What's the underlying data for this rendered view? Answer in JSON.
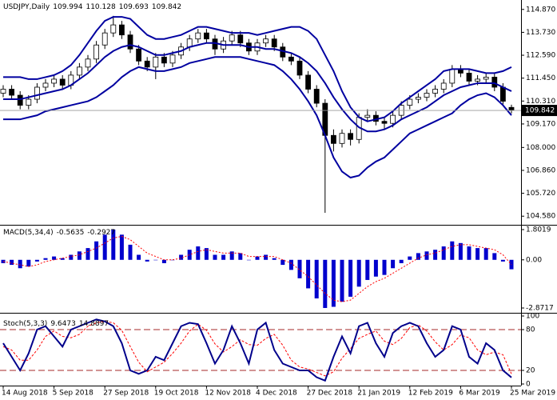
{
  "chart_data": [
    {
      "type": "candlestick",
      "title": "USDJPY,Daily",
      "open": [
        110.7,
        110.9,
        110.6,
        110.1,
        110.4,
        111.0,
        111.2,
        111.4,
        111.1,
        111.6,
        112.0,
        112.4,
        113.1,
        113.7,
        114.1,
        113.6,
        112.9,
        112.3,
        112.0,
        112.5,
        112.2,
        112.6,
        113.0,
        113.4,
        113.7,
        113.4,
        112.9,
        113.3,
        113.6,
        113.2,
        112.8,
        113.2,
        113.4,
        113.0,
        112.5,
        112.3,
        111.6,
        110.9,
        110.2,
        108.6,
        108.2,
        108.7,
        108.4,
        109.5,
        109.6,
        109.3,
        109.2,
        109.6,
        110.1,
        110.4,
        110.5,
        110.7,
        110.9,
        111.2,
        111.9,
        111.7,
        111.3,
        111.4,
        111.5,
        111.0,
        109.994
      ],
      "high": [
        111.1,
        111.1,
        110.8,
        110.6,
        111.2,
        111.4,
        111.6,
        111.6,
        111.8,
        112.2,
        112.6,
        113.3,
        113.9,
        114.55,
        114.3,
        113.8,
        113.1,
        112.5,
        112.7,
        112.7,
        112.8,
        113.2,
        113.6,
        113.9,
        113.9,
        113.6,
        113.5,
        113.8,
        113.8,
        113.4,
        113.4,
        113.6,
        113.6,
        113.2,
        112.7,
        112.5,
        111.8,
        111.1,
        110.4,
        108.9,
        108.9,
        108.9,
        109.7,
        109.9,
        109.8,
        109.5,
        109.8,
        110.3,
        110.6,
        110.7,
        110.9,
        111.1,
        111.4,
        112.1,
        112.1,
        111.9,
        111.6,
        111.7,
        111.7,
        111.2,
        110.128
      ],
      "low": [
        110.5,
        110.4,
        109.9,
        109.9,
        110.2,
        110.8,
        111.0,
        110.9,
        110.9,
        111.4,
        111.8,
        112.2,
        112.9,
        113.5,
        113.4,
        112.7,
        112.1,
        111.8,
        111.4,
        112.0,
        112.0,
        112.4,
        112.8,
        113.2,
        113.2,
        112.6,
        112.7,
        113.1,
        113.0,
        112.6,
        112.6,
        113.0,
        112.8,
        112.3,
        112.1,
        111.4,
        110.7,
        110.0,
        104.75,
        107.8,
        108.0,
        108.1,
        108.2,
        109.3,
        109.1,
        108.9,
        109.0,
        109.4,
        109.9,
        110.2,
        110.3,
        110.5,
        110.7,
        111.0,
        111.5,
        111.1,
        111.1,
        111.2,
        110.8,
        110.1,
        109.693
      ],
      "close": [
        110.9,
        110.6,
        110.1,
        110.4,
        111.0,
        111.2,
        111.4,
        111.1,
        111.6,
        112.0,
        112.4,
        113.1,
        113.7,
        114.1,
        113.6,
        112.9,
        112.3,
        112.0,
        112.5,
        112.2,
        112.6,
        113.0,
        113.4,
        113.7,
        113.4,
        112.9,
        113.3,
        113.6,
        113.2,
        112.8,
        113.2,
        113.4,
        113.0,
        112.5,
        112.3,
        111.6,
        110.9,
        110.2,
        108.6,
        108.2,
        108.7,
        108.4,
        109.5,
        109.6,
        109.3,
        109.2,
        109.6,
        110.1,
        110.4,
        110.5,
        110.7,
        110.9,
        111.2,
        111.9,
        111.7,
        111.3,
        111.4,
        111.5,
        111.0,
        110.3,
        109.842
      ],
      "up_color": "#ffffff",
      "down_color": "#000000",
      "wick_color": "#000000",
      "bands": {
        "color": "#0000a0",
        "upper": [
          111.5,
          111.5,
          111.5,
          111.4,
          111.4,
          111.5,
          111.6,
          111.8,
          112.1,
          112.6,
          113.2,
          113.8,
          114.3,
          114.5,
          114.5,
          114.4,
          114.0,
          113.6,
          113.4,
          113.4,
          113.5,
          113.6,
          113.8,
          114.0,
          114.0,
          113.9,
          113.8,
          113.7,
          113.7,
          113.7,
          113.6,
          113.7,
          113.8,
          113.9,
          114.0,
          114.0,
          113.8,
          113.4,
          112.6,
          111.8,
          110.8,
          110.0,
          109.5,
          109.3,
          109.4,
          109.5,
          109.8,
          110.2,
          110.5,
          110.8,
          111.1,
          111.4,
          111.8,
          111.9,
          111.9,
          111.9,
          111.8,
          111.7,
          111.7,
          111.8,
          112.0
        ],
        "middle": [
          110.4,
          110.4,
          110.4,
          110.5,
          110.6,
          110.7,
          110.8,
          110.9,
          111.1,
          111.4,
          111.7,
          112.1,
          112.5,
          112.8,
          113.0,
          113.1,
          113.0,
          112.8,
          112.6,
          112.6,
          112.7,
          112.8,
          113.0,
          113.1,
          113.2,
          113.2,
          113.1,
          113.1,
          113.1,
          113.0,
          113.0,
          112.9,
          112.9,
          112.8,
          112.7,
          112.5,
          112.2,
          111.8,
          111.2,
          110.5,
          109.9,
          109.4,
          109.0,
          108.8,
          108.8,
          108.9,
          109.1,
          109.4,
          109.6,
          109.8,
          110.0,
          110.3,
          110.6,
          110.8,
          111.0,
          111.1,
          111.2,
          111.2,
          111.2,
          111.0,
          110.8
        ],
        "lower": [
          109.4,
          109.4,
          109.4,
          109.5,
          109.6,
          109.8,
          109.9,
          110.0,
          110.1,
          110.2,
          110.3,
          110.5,
          110.8,
          111.1,
          111.5,
          111.8,
          112.0,
          111.9,
          111.8,
          111.8,
          111.9,
          112.0,
          112.2,
          112.3,
          112.4,
          112.5,
          112.5,
          112.5,
          112.5,
          112.4,
          112.3,
          112.2,
          112.1,
          111.8,
          111.4,
          110.9,
          110.3,
          109.6,
          108.6,
          107.5,
          106.8,
          106.5,
          106.6,
          107.0,
          107.3,
          107.5,
          107.9,
          108.3,
          108.7,
          108.9,
          109.1,
          109.3,
          109.5,
          109.7,
          110.1,
          110.4,
          110.6,
          110.7,
          110.5,
          110.1,
          109.6
        ]
      },
      "ylim": [
        104.39,
        115.1
      ],
      "yticks": [
        {
          "value": 114.87,
          "label": "114.870"
        },
        {
          "value": 113.73,
          "label": "113.730"
        },
        {
          "value": 112.59,
          "label": "112.590"
        },
        {
          "value": 111.45,
          "label": "111.450"
        },
        {
          "value": 110.31,
          "label": "110.310"
        },
        {
          "value": 109.17,
          "label": "109.170"
        },
        {
          "value": 108,
          "label": "108.000"
        },
        {
          "value": 106.86,
          "label": "106.860"
        },
        {
          "value": 105.72,
          "label": "105.720"
        },
        {
          "value": 104.58,
          "label": "104.580"
        }
      ]
    },
    {
      "type": "macd",
      "title": "MACD(5,34,4)",
      "color": "#0000cd",
      "signal_color": "#ff0000",
      "histogram": [
        -0.2,
        -0.3,
        -0.5,
        -0.4,
        -0.1,
        0.1,
        0.2,
        0.1,
        0.3,
        0.5,
        0.7,
        1.1,
        1.5,
        1.8,
        1.5,
        0.9,
        0.3,
        -0.1,
        0.0,
        -0.2,
        0.0,
        0.3,
        0.6,
        0.8,
        0.7,
        0.3,
        0.3,
        0.5,
        0.4,
        0.0,
        0.2,
        0.3,
        0.1,
        -0.3,
        -0.6,
        -1.1,
        -1.7,
        -2.3,
        -2.87,
        -2.8,
        -2.5,
        -2.2,
        -1.6,
        -1.2,
        -1.0,
        -0.9,
        -0.5,
        -0.2,
        0.2,
        0.4,
        0.5,
        0.6,
        0.8,
        1.1,
        1.0,
        0.8,
        0.7,
        0.7,
        0.4,
        -0.1,
        -0.5635
      ],
      "signal": [
        -0.1,
        -0.2,
        -0.3,
        -0.4,
        -0.3,
        -0.1,
        0.0,
        0.1,
        0.2,
        0.3,
        0.5,
        0.7,
        1.0,
        1.3,
        1.4,
        1.2,
        0.8,
        0.4,
        0.2,
        0.0,
        0.0,
        0.1,
        0.3,
        0.5,
        0.6,
        0.5,
        0.4,
        0.4,
        0.4,
        0.2,
        0.2,
        0.2,
        0.2,
        0.0,
        -0.2,
        -0.6,
        -1.0,
        -1.5,
        -2.0,
        -2.4,
        -2.5,
        -2.4,
        -2.0,
        -1.6,
        -1.3,
        -1.1,
        -0.8,
        -0.5,
        -0.2,
        0.1,
        0.3,
        0.4,
        0.6,
        0.8,
        0.9,
        0.9,
        0.8,
        0.7,
        0.6,
        0.3,
        -0.2927
      ],
      "ylim": [
        -2.8717,
        1.8019
      ],
      "yticks": [
        1.8019,
        {
          "value": 0,
          "label": "0.00"
        },
        -2.8717
      ]
    },
    {
      "type": "stochastic",
      "title": "Stoch(5,3,3)",
      "color": "#00008b",
      "signal_color": "#ff0000",
      "level_color": "#a52a2a",
      "main": [
        60,
        40,
        20,
        45,
        80,
        85,
        70,
        55,
        80,
        85,
        90,
        95,
        92,
        85,
        60,
        20,
        15,
        20,
        40,
        35,
        60,
        85,
        90,
        88,
        60,
        30,
        50,
        85,
        60,
        30,
        80,
        90,
        50,
        30,
        25,
        20,
        20,
        10,
        5,
        40,
        70,
        45,
        85,
        90,
        60,
        40,
        75,
        85,
        90,
        85,
        60,
        40,
        50,
        85,
        80,
        40,
        30,
        60,
        50,
        20,
        9.6473
      ],
      "signal": [
        55,
        50,
        35,
        35,
        50,
        70,
        78,
        70,
        68,
        73,
        85,
        90,
        92,
        90,
        79,
        55,
        32,
        18,
        25,
        32,
        45,
        60,
        78,
        88,
        79,
        59,
        47,
        55,
        65,
        58,
        57,
        67,
        73,
        57,
        35,
        25,
        22,
        17,
        12,
        18,
        38,
        52,
        67,
        73,
        78,
        63,
        58,
        67,
        83,
        87,
        78,
        62,
        50,
        58,
        72,
        68,
        50,
        43,
        47,
        43,
        14.8897
      ],
      "levels": [
        20,
        80
      ],
      "ylim": [
        0,
        100
      ],
      "yticks": [
        100,
        80,
        20,
        0
      ],
      "categories": [
        "14 Aug 2018",
        null,
        null,
        null,
        null,
        null,
        "5 Sep 2018",
        null,
        null,
        null,
        null,
        null,
        "27 Sep 2018",
        null,
        null,
        null,
        null,
        null,
        "19 Oct 2018",
        null,
        null,
        null,
        null,
        null,
        "12 Nov 2018",
        null,
        null,
        null,
        null,
        null,
        "4 Dec 2018",
        null,
        null,
        null,
        null,
        null,
        "27 Dec 2018",
        null,
        null,
        null,
        null,
        null,
        "21 Jan 2019",
        null,
        null,
        null,
        null,
        null,
        "12 Feb 2019",
        null,
        null,
        null,
        null,
        null,
        "6 Mar 2019",
        null,
        null,
        null,
        null,
        null,
        "25 Mar 2019"
      ]
    }
  ]
}
